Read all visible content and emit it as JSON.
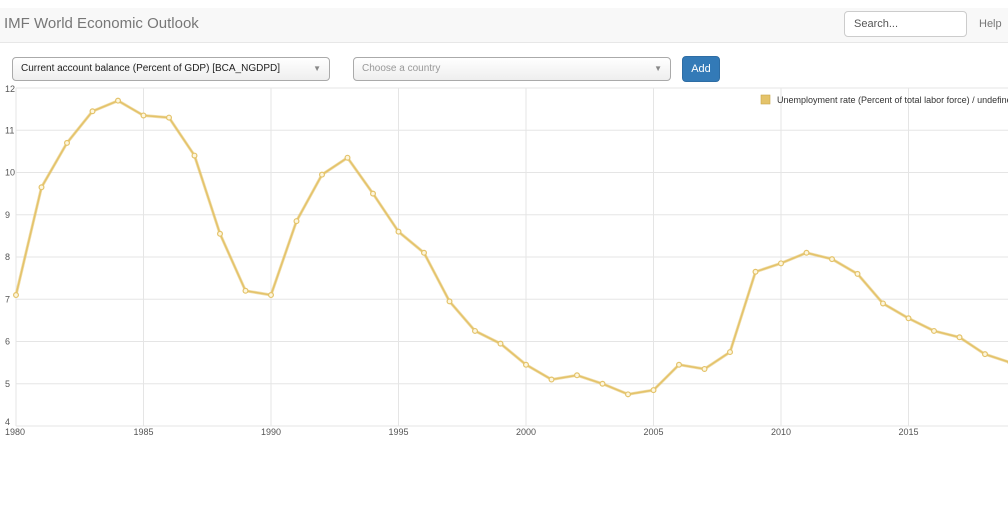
{
  "navbar": {
    "title": "IMF World Economic Outlook",
    "search_placeholder": "Search...",
    "help_label": "Help"
  },
  "controls": {
    "indicator_select": "Current account balance (Percent of GDP) [BCA_NGDPD]",
    "country_placeholder": "Choose a country",
    "add_label": "Add"
  },
  "colors": {
    "series_line": "#e4c36a",
    "series_fill": "#fdf6de",
    "grid": "#e5e5e5",
    "add_button": "#337ab7"
  },
  "chart_data": {
    "type": "line",
    "title": "",
    "xlabel": "",
    "ylabel": "",
    "xlim": [
      1980,
      2019
    ],
    "ylim": [
      4,
      12
    ],
    "x_ticks": [
      1980,
      1985,
      1990,
      1995,
      2000,
      2005,
      2010,
      2015
    ],
    "y_ticks": [
      4,
      5,
      6,
      7,
      8,
      9,
      10,
      11,
      12
    ],
    "grid": true,
    "legend_position": "top-right",
    "series": [
      {
        "name": "Unemployment rate (Percent of total labor force) / undefined",
        "x": [
          1980,
          1981,
          1982,
          1983,
          1984,
          1985,
          1986,
          1987,
          1988,
          1989,
          1990,
          1991,
          1992,
          1993,
          1994,
          1995,
          1996,
          1997,
          1998,
          1999,
          2000,
          2001,
          2002,
          2003,
          2004,
          2005,
          2006,
          2007,
          2008,
          2009,
          2010,
          2011,
          2012,
          2013,
          2014,
          2015,
          2016,
          2017,
          2018,
          2019
        ],
        "values": [
          7.1,
          9.65,
          10.7,
          11.45,
          11.7,
          11.35,
          11.3,
          10.4,
          8.55,
          7.2,
          7.1,
          8.85,
          9.95,
          10.35,
          9.5,
          8.6,
          8.1,
          6.95,
          6.25,
          5.95,
          5.45,
          5.1,
          5.2,
          5.0,
          4.75,
          4.85,
          5.45,
          5.35,
          5.75,
          7.65,
          7.85,
          8.1,
          7.95,
          7.6,
          6.9,
          6.55,
          6.25,
          6.1,
          5.7,
          5.5
        ]
      }
    ]
  }
}
